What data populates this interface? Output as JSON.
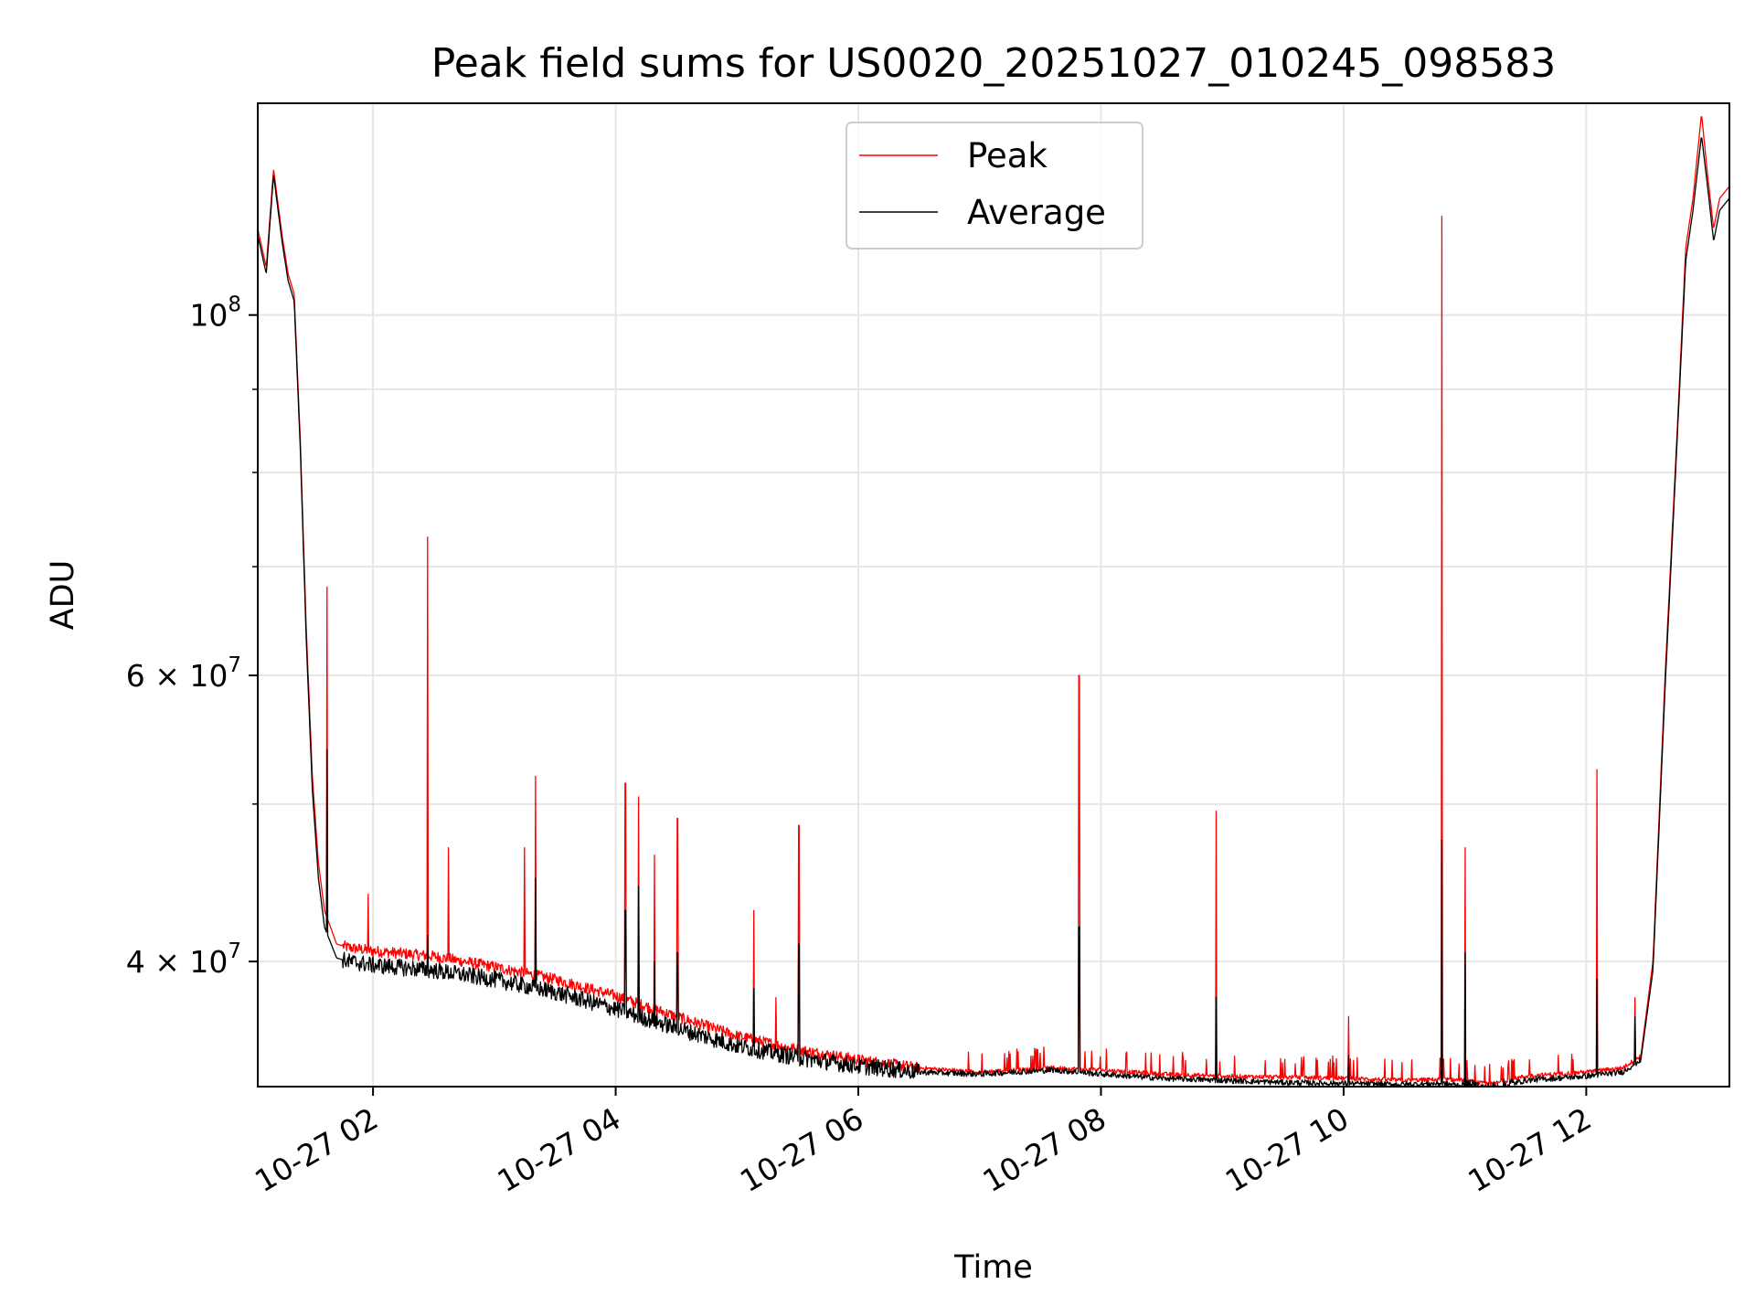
{
  "chart_data": {
    "type": "line",
    "title": "Peak field sums for US0020_20251027_010245_098583",
    "xlabel": "Time",
    "ylabel": "ADU",
    "yscale": "log",
    "ylim": [
      33500000,
      135000000
    ],
    "xlim_hours": [
      1.05,
      13.18
    ],
    "grid": true,
    "legend_location": "top-center",
    "x_ticks": [
      {
        "hour": 2,
        "label": "10-27 02"
      },
      {
        "hour": 4,
        "label": "10-27 04"
      },
      {
        "hour": 6,
        "label": "10-27 06"
      },
      {
        "hour": 8,
        "label": "10-27 08"
      },
      {
        "hour": 10,
        "label": "10-27 10"
      },
      {
        "hour": 12,
        "label": "10-27 12"
      }
    ],
    "y_major_ticks": [
      {
        "value": 100000000,
        "base": "10",
        "exp": "8",
        "mant": ""
      },
      {
        "value": 60000000,
        "base": "10",
        "exp": "7",
        "mant": "6 × "
      },
      {
        "value": 40000000,
        "base": "10",
        "exp": "7",
        "mant": "4 × "
      }
    ],
    "y_minor_gridlines": [
      50000000,
      70000000,
      80000000,
      90000000
    ],
    "series": [
      {
        "name": "Peak",
        "color": "#ff0000",
        "x_hours": [
          1.05,
          1.12,
          1.18,
          1.25,
          1.3,
          1.35,
          1.4,
          1.45,
          1.5,
          1.55,
          1.6,
          1.7,
          1.8,
          2.0,
          2.5,
          3.0,
          3.5,
          4.0,
          4.5,
          5.0,
          5.5,
          6.0,
          6.5,
          7.0,
          7.6,
          8.0,
          8.5,
          9.0,
          9.5,
          10.0,
          10.5,
          10.8,
          11.0,
          11.2,
          11.5,
          12.0,
          12.3,
          12.45,
          12.55,
          12.65,
          12.75,
          12.82,
          12.88,
          12.95,
          13.0,
          13.05,
          13.1,
          13.18
        ],
        "values": [
          113000000,
          107000000,
          123000000,
          112000000,
          106000000,
          103000000,
          84000000,
          64000000,
          52000000,
          46000000,
          43000000,
          41000000,
          40800000,
          40600000,
          40300000,
          39700000,
          39000000,
          38100000,
          37000000,
          36000000,
          35300000,
          34800000,
          34400000,
          34200000,
          34400000,
          34300000,
          34100000,
          34000000,
          33950000,
          33900000,
          33800000,
          33850000,
          33800000,
          33600000,
          34000000,
          34200000,
          34400000,
          35000000,
          40000000,
          60000000,
          85000000,
          110000000,
          118000000,
          133000000,
          122000000,
          113000000,
          118000000,
          120000000
        ],
        "spikes": [
          {
            "hour": 1.62,
            "value": 68000000
          },
          {
            "hour": 1.96,
            "value": 44000000
          },
          {
            "hour": 2.45,
            "value": 73000000
          },
          {
            "hour": 2.62,
            "value": 47000000
          },
          {
            "hour": 3.25,
            "value": 47000000
          },
          {
            "hour": 3.34,
            "value": 52000000
          },
          {
            "hour": 4.08,
            "value": 51500000
          },
          {
            "hour": 4.19,
            "value": 50500000
          },
          {
            "hour": 4.32,
            "value": 46500000
          },
          {
            "hour": 4.51,
            "value": 49000000
          },
          {
            "hour": 5.14,
            "value": 43000000
          },
          {
            "hour": 5.32,
            "value": 38000000
          },
          {
            "hour": 5.51,
            "value": 48500000
          },
          {
            "hour": 7.82,
            "value": 60000000
          },
          {
            "hour": 8.95,
            "value": 49500000
          },
          {
            "hour": 10.04,
            "value": 37000000
          },
          {
            "hour": 10.81,
            "value": 115000000
          },
          {
            "hour": 11.0,
            "value": 47000000
          },
          {
            "hour": 12.09,
            "value": 52500000
          },
          {
            "hour": 12.4,
            "value": 38000000
          }
        ]
      },
      {
        "name": "Average",
        "color": "#000000",
        "x_hours": [
          1.05,
          1.12,
          1.18,
          1.25,
          1.3,
          1.35,
          1.4,
          1.45,
          1.5,
          1.55,
          1.6,
          1.7,
          1.8,
          2.0,
          2.5,
          3.0,
          3.5,
          4.0,
          4.5,
          5.0,
          5.5,
          6.0,
          6.5,
          7.0,
          7.6,
          8.0,
          8.5,
          9.0,
          9.5,
          10.0,
          10.5,
          10.8,
          11.0,
          11.2,
          11.5,
          12.0,
          12.3,
          12.45,
          12.55,
          12.65,
          12.75,
          12.82,
          12.88,
          12.95,
          13.0,
          13.05,
          13.1,
          13.18
        ],
        "values": [
          112000000,
          106000000,
          122000000,
          111000000,
          105000000,
          102000000,
          83000000,
          63000000,
          51000000,
          45000000,
          42000000,
          40200000,
          40000000,
          39800000,
          39500000,
          39000000,
          38300000,
          37400000,
          36400000,
          35500000,
          34900000,
          34500000,
          34200000,
          34100000,
          34300000,
          34100000,
          33900000,
          33800000,
          33700000,
          33650000,
          33600000,
          33650000,
          33550000,
          33350000,
          33800000,
          34000000,
          34200000,
          34800000,
          39500000,
          59000000,
          84000000,
          108000000,
          116000000,
          129000000,
          120000000,
          111000000,
          116000000,
          118000000
        ],
        "spikes": [
          {
            "hour": 1.62,
            "value": 54000000
          },
          {
            "hour": 2.45,
            "value": 41500000
          },
          {
            "hour": 3.34,
            "value": 45000000
          },
          {
            "hour": 4.08,
            "value": 43000000
          },
          {
            "hour": 4.19,
            "value": 44500000
          },
          {
            "hour": 4.32,
            "value": 40000000
          },
          {
            "hour": 4.51,
            "value": 40500000
          },
          {
            "hour": 5.14,
            "value": 38500000
          },
          {
            "hour": 5.51,
            "value": 41000000
          },
          {
            "hour": 7.82,
            "value": 42000000
          },
          {
            "hour": 8.95,
            "value": 38000000
          },
          {
            "hour": 10.04,
            "value": 35000000
          },
          {
            "hour": 10.81,
            "value": 47500000
          },
          {
            "hour": 11.0,
            "value": 40500000
          },
          {
            "hour": 12.09,
            "value": 39000000
          },
          {
            "hour": 12.4,
            "value": 37000000
          }
        ]
      }
    ]
  }
}
